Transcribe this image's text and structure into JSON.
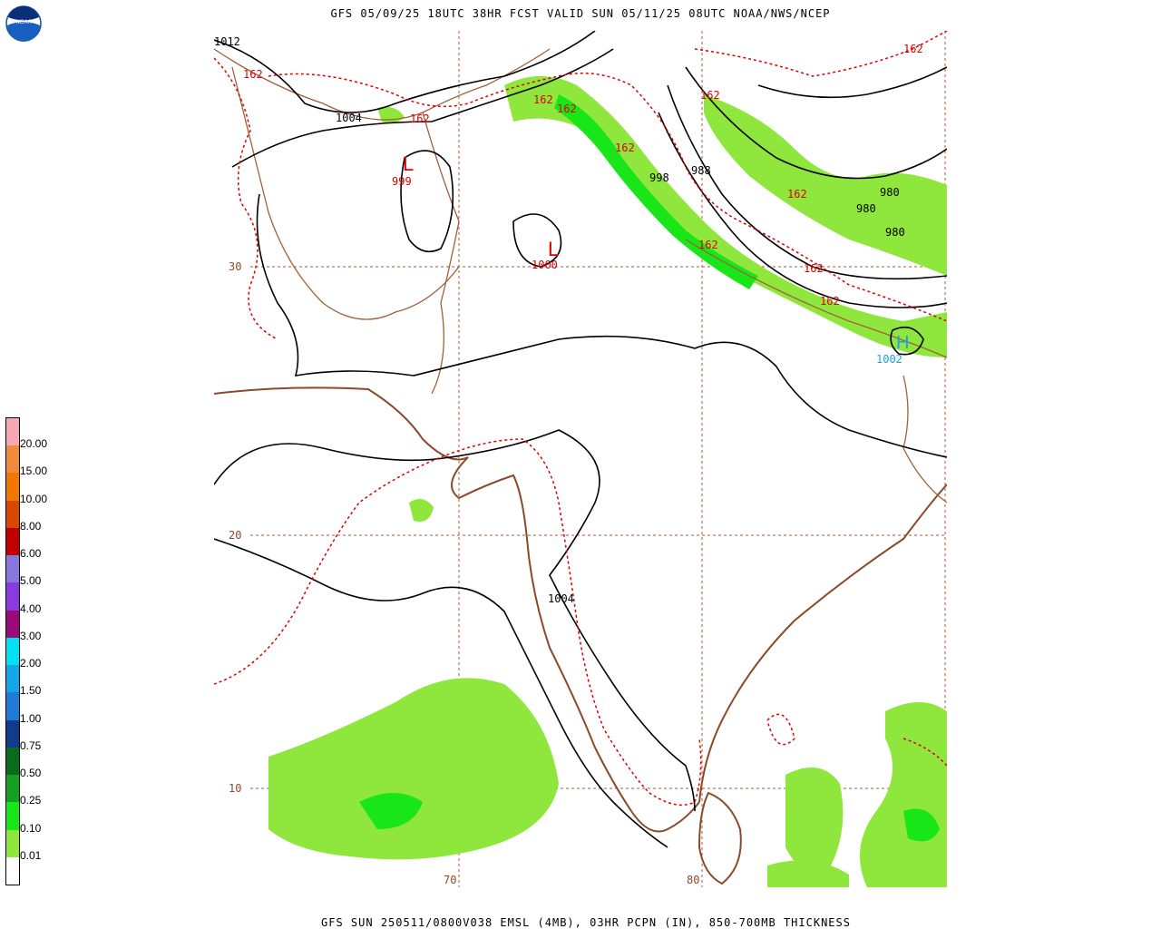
{
  "header": {
    "title": "GFS 05/09/25 18UTC 38HR FCST VALID SUN 05/11/25 08UTC NOAA/NWS/NCEP"
  },
  "footer": {
    "caption": "GFS SUN 250511/0800V038 EMSL (4MB), 03HR PCPN (IN), 850-700MB THICKNESS"
  },
  "logo": {
    "text": "NOAA"
  },
  "legend": {
    "labels": [
      "20.00",
      "15.00",
      "10.00",
      "8.00",
      "6.00",
      "5.00",
      "4.00",
      "3.00",
      "2.00",
      "1.50",
      "1.00",
      "0.75",
      "0.50",
      "0.25",
      "0.10",
      "0.01"
    ],
    "colors": [
      "#f7a6b4",
      "#ef8b3a",
      "#f07800",
      "#d94800",
      "#c00000",
      "#8877dd",
      "#8a3be0",
      "#9b0a7a",
      "#00e0f0",
      "#14a6e6",
      "#1f7ad8",
      "#123b8a",
      "#0a6b1a",
      "#14a023",
      "#19e619",
      "#8fe63c",
      "#ffffff"
    ]
  },
  "map": {
    "lat_labels": [
      "30",
      "20",
      "10"
    ],
    "lon_labels": [
      "70",
      "80"
    ],
    "pressure_labels": [
      "1012",
      "1004",
      "1004",
      "998",
      "988",
      "980",
      "980",
      "980"
    ],
    "thickness_labels": [
      "162",
      "162",
      "162",
      "162",
      "162",
      "162",
      "162",
      "162",
      "162",
      "162",
      "162"
    ],
    "lows": [
      {
        "symbol": "L",
        "value": "999"
      },
      {
        "symbol": "L",
        "value": "1000"
      }
    ],
    "highs": [
      {
        "symbol": "H",
        "value": "1002"
      }
    ],
    "colors": {
      "isobar": "#000000",
      "thickness": "#dd0000",
      "coast": "#8b4a2b",
      "border": "#a0603a",
      "grid": "#a0603a",
      "high": "#20a0e0",
      "precip_light": "#8fe63c",
      "precip_mid": "#19e619"
    }
  }
}
